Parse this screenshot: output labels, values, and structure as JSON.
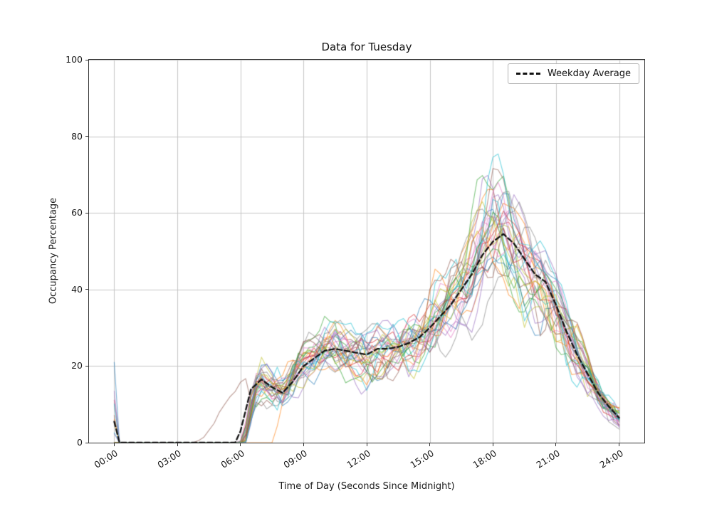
{
  "figure": {
    "background": "#ffffff"
  },
  "chart_data": {
    "type": "line",
    "title": "Data for Tuesday",
    "xlabel": "Time of Day (Seconds Since Midnight)",
    "ylabel": "Occupancy Percentage",
    "grid": true,
    "grid_color": "#c6c6c6",
    "ylim": [
      0,
      100
    ],
    "xlim_hours": [
      -1.2,
      25.2
    ],
    "legend": {
      "position": "upper right",
      "entries": [
        "Weekday Average"
      ]
    },
    "x_ticks": {
      "labels": [
        "00:00",
        "03:00",
        "06:00",
        "09:00",
        "12:00",
        "15:00",
        "18:00",
        "21:00",
        "24:00"
      ],
      "hours": [
        0,
        3,
        6,
        9,
        12,
        15,
        18,
        21,
        24
      ]
    },
    "y_ticks": {
      "labels": [
        "0",
        "20",
        "40",
        "60",
        "80",
        "100"
      ],
      "values": [
        0,
        20,
        40,
        60,
        80,
        100
      ]
    },
    "average_series": {
      "name": "Weekday Average",
      "color": "#111111",
      "dash": [
        7,
        4
      ],
      "line_width": 2.3,
      "x_hours": [
        0,
        0.25,
        5.75,
        6.0,
        6.5,
        7.0,
        7.5,
        8.0,
        8.5,
        9.0,
        9.5,
        10.0,
        10.5,
        11.0,
        11.5,
        12.0,
        12.5,
        13.0,
        13.5,
        14.0,
        14.5,
        15.0,
        15.5,
        16.0,
        16.5,
        17.0,
        17.5,
        18.0,
        18.5,
        19.0,
        19.5,
        20.0,
        20.5,
        21.0,
        21.5,
        22.0,
        22.5,
        23.0,
        23.5,
        24.0
      ],
      "values": [
        5.5,
        0,
        0,
        3,
        14,
        16.5,
        14.5,
        13,
        16,
        20,
        22,
        24,
        24.5,
        24,
        23.5,
        23,
        24.5,
        24.5,
        25,
        26,
        27.5,
        30,
        33,
        36,
        40,
        44,
        49,
        52.5,
        54.5,
        52,
        48,
        44,
        42,
        36,
        29,
        23,
        18,
        13,
        9.5,
        6.5
      ]
    },
    "ensemble": {
      "num_series": 30,
      "alpha": 0.55,
      "line_width": 1.2,
      "seed": 9,
      "colors": [
        "#1f77b4",
        "#ff7f0e",
        "#2ca02c",
        "#d62728",
        "#9467bd",
        "#8c564b",
        "#e377c2",
        "#7f7f7f",
        "#bcbd22",
        "#17becf"
      ],
      "start_hour_range": [
        5.9,
        6.3
      ],
      "early_ramp_series": 5,
      "early_ramp_start_hour": 4.0,
      "late_start_series": 11,
      "late_start_hour": 7.6,
      "rel_amplitude_range": [
        0.16,
        0.46
      ],
      "zero_hour_spike_max": 21
    }
  }
}
